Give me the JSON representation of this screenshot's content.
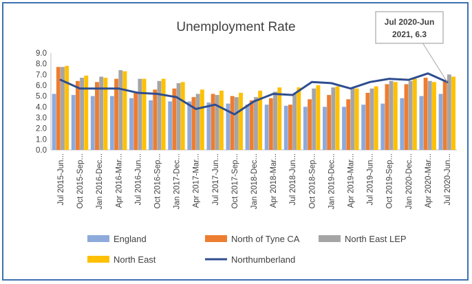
{
  "chart_data": {
    "type": "bar",
    "title": "Unemployment Rate",
    "xlabel": "",
    "ylabel": "",
    "ylim": [
      0,
      9
    ],
    "yticks": [
      "0.0",
      "1.0",
      "2.0",
      "3.0",
      "4.0",
      "5.0",
      "6.0",
      "7.0",
      "8.0",
      "9.0"
    ],
    "grid": false,
    "legend_position": "bottom",
    "categories": [
      "Jul 2015-Jun...",
      "Oct 2015-Sep...",
      "Jan 2016-Dec...",
      "Apr 2016-Mar...",
      "Jul 2016-Jun...",
      "Oct 2016-Sep...",
      "Jan 2017-Dec...",
      "Apr 2017-Mar...",
      "Jul 2017-Jun...",
      "Oct 2017-Sep...",
      "Jan 2018-Dec...",
      "Apr 2018-Mar...",
      "Jul 2018-Jun...",
      "Oct 2018-Sep...",
      "Jan 2019-Dec...",
      "Apr 2019-Mar...",
      "Jul 2019-Jun...",
      "Oct 2019-Sep...",
      "Jan 2020-Dec...",
      "Apr 2020-Mar...",
      "Jul 2020-Jun..."
    ],
    "series": [
      {
        "name": "England",
        "kind": "bar",
        "color": "#8eaadb",
        "values": [
          5.2,
          5.1,
          5.0,
          5.0,
          4.8,
          4.6,
          4.5,
          4.5,
          4.4,
          4.3,
          4.2,
          4.2,
          4.1,
          4.0,
          4.0,
          4.0,
          4.2,
          4.3,
          4.8,
          5.0,
          5.2
        ]
      },
      {
        "name": "North of Tyne CA",
        "kind": "bar",
        "color": "#ed7d31",
        "values": [
          7.7,
          6.4,
          6.3,
          6.6,
          5.3,
          5.6,
          5.7,
          4.9,
          5.2,
          5.0,
          4.6,
          4.8,
          4.2,
          4.7,
          5.1,
          4.7,
          5.3,
          6.1,
          6.1,
          6.7,
          6.5
        ]
      },
      {
        "name": "North East LEP",
        "kind": "bar",
        "color": "#a5a5a5",
        "values": [
          7.7,
          6.7,
          6.8,
          7.4,
          6.6,
          6.4,
          6.2,
          5.2,
          5.1,
          4.9,
          4.9,
          5.4,
          5.2,
          5.7,
          5.8,
          5.8,
          5.7,
          6.4,
          6.4,
          6.4,
          7.0
        ]
      },
      {
        "name": "North East",
        "kind": "bar",
        "color": "#ffc000",
        "values": [
          7.8,
          6.9,
          6.7,
          7.3,
          6.6,
          6.6,
          6.3,
          5.6,
          5.5,
          5.3,
          5.5,
          5.8,
          5.8,
          6.0,
          5.9,
          5.7,
          5.9,
          6.3,
          6.6,
          6.3,
          6.8
        ]
      },
      {
        "name": "Northumberland",
        "kind": "line",
        "color": "#2e4d8f",
        "values": [
          6.5,
          5.7,
          5.7,
          5.7,
          5.3,
          5.2,
          4.9,
          3.8,
          4.2,
          3.3,
          4.5,
          5.2,
          5.1,
          6.3,
          6.2,
          5.7,
          6.3,
          6.6,
          6.5,
          7.1,
          6.3
        ]
      }
    ],
    "annotation": {
      "line1": "Jul 2020-Jun",
      "line2": "2021, 6.3",
      "category_index": 20
    }
  }
}
